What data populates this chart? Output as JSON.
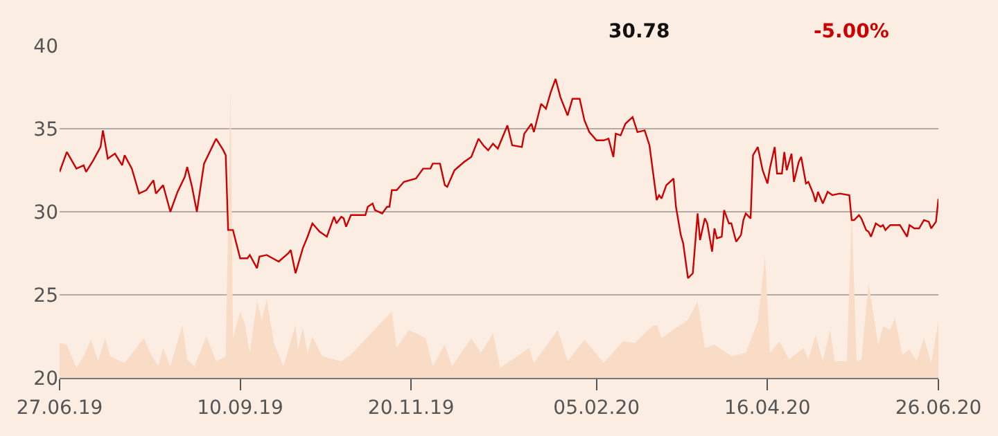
{
  "chart_data": {
    "type": "line",
    "annotations": [
      "30.78",
      "-5.00%"
    ],
    "xlim": [
      "2019-06-27",
      "2020-06-26"
    ],
    "xticks": [
      {
        "value": "2019-06-27",
        "label": "27.06.19"
      },
      {
        "value": "2019-09-10",
        "label": "10.09.19"
      },
      {
        "value": "2019-11-20",
        "label": "20.11.19"
      },
      {
        "value": "2020-02-05",
        "label": "05.02.20"
      },
      {
        "value": "2020-04-16",
        "label": "16.04.20"
      },
      {
        "value": "2020-06-26",
        "label": "26.06.20"
      }
    ],
    "ylim": [
      20,
      40
    ],
    "yticks": [
      20,
      25,
      30,
      35,
      40
    ],
    "grid": "y",
    "series": [
      {
        "type": "area",
        "color": "#f8dcc6",
        "x": [
          "2019-06-27",
          "2019-06-30",
          "2019-07-04",
          "2019-07-07",
          "2019-07-10",
          "2019-07-13",
          "2019-07-16",
          "2019-07-18",
          "2019-07-24",
          "2019-08-01",
          "2019-08-04",
          "2019-08-07",
          "2019-08-09",
          "2019-08-12",
          "2019-08-17",
          "2019-08-19",
          "2019-08-22",
          "2019-08-27",
          "2019-08-31",
          "2019-09-04",
          "2019-09-06",
          "2019-09-07",
          "2019-09-10",
          "2019-09-12",
          "2019-09-14",
          "2019-09-17",
          "2019-09-19",
          "2019-09-21",
          "2019-09-24",
          "2019-09-28",
          "2019-10-03",
          "2019-10-04",
          "2019-10-06",
          "2019-10-08",
          "2019-10-10",
          "2019-10-14",
          "2019-10-22",
          "2019-10-26",
          "2019-11-12",
          "2019-11-14",
          "2019-11-19",
          "2019-11-26",
          "2019-11-29",
          "2019-12-04",
          "2019-12-07",
          "2019-12-15",
          "2019-12-19",
          "2019-12-24",
          "2019-12-27",
          "2020-01-08",
          "2020-01-10",
          "2020-01-20",
          "2020-01-24",
          "2020-01-31",
          "2020-02-08",
          "2020-02-16",
          "2020-02-21",
          "2020-02-28",
          "2020-03-01",
          "2020-03-03",
          "2020-03-14",
          "2020-03-18",
          "2020-03-21",
          "2020-03-25",
          "2020-04-01",
          "2020-04-07",
          "2020-04-12",
          "2020-04-15",
          "2020-04-17",
          "2020-04-21",
          "2020-04-25",
          "2020-05-01",
          "2020-05-03",
          "2020-05-06",
          "2020-05-09",
          "2020-05-12",
          "2020-05-14",
          "2020-05-19",
          "2020-05-21",
          "2020-05-23",
          "2020-05-25",
          "2020-05-28",
          "2020-06-01",
          "2020-06-03",
          "2020-06-06",
          "2020-06-08",
          "2020-06-11",
          "2020-06-14",
          "2020-06-17",
          "2020-06-20",
          "2020-06-23",
          "2020-06-26"
        ],
        "values": [
          22.1,
          22.0,
          20.6,
          21.3,
          22.3,
          21.0,
          22.4,
          21.3,
          20.9,
          22.4,
          21.4,
          20.7,
          21.8,
          20.7,
          23.2,
          21.1,
          20.7,
          22.5,
          21.0,
          21.3,
          37.3,
          22.4,
          24.0,
          23.2,
          21.5,
          24.6,
          23.5,
          24.7,
          22.1,
          20.7,
          23.2,
          21.7,
          23.0,
          21.5,
          22.5,
          21.3,
          21.0,
          21.4,
          24.0,
          21.8,
          22.9,
          22.4,
          20.7,
          22.0,
          20.7,
          22.4,
          21.5,
          22.7,
          20.6,
          21.8,
          20.9,
          22.9,
          21.0,
          22.3,
          20.9,
          22.2,
          22.1,
          23.1,
          23.2,
          22.4,
          23.5,
          24.6,
          21.8,
          22.0,
          21.3,
          21.5,
          23.4,
          27.3,
          21.5,
          22.2,
          21.1,
          21.8,
          21.1,
          22.6,
          21.0,
          22.9,
          21.0,
          21.0,
          29.9,
          21.0,
          21.1,
          25.7,
          22.0,
          23.1,
          22.9,
          23.6,
          21.4,
          21.7,
          21.0,
          22.4,
          20.9,
          23.4
        ]
      },
      {
        "color": "#cc0000",
        "x": [
          "2019-06-27",
          "2019-06-30",
          "2019-07-04",
          "2019-07-07",
          "2019-07-08",
          "2019-07-11",
          "2019-07-14",
          "2019-07-15",
          "2019-07-17",
          "2019-07-20",
          "2019-07-23",
          "2019-07-24",
          "2019-07-27",
          "2019-07-30",
          "2019-08-02",
          "2019-08-05",
          "2019-08-06",
          "2019-08-09",
          "2019-08-12",
          "2019-08-15",
          "2019-08-18",
          "2019-08-19",
          "2019-08-21",
          "2019-08-23",
          "2019-08-26",
          "2019-08-31",
          "2019-09-03",
          "2019-09-04",
          "2019-09-05",
          "2019-09-07",
          "2019-09-10",
          "2019-09-13",
          "2019-09-14",
          "2019-09-17",
          "2019-09-18",
          "2019-09-21",
          "2019-09-26",
          "2019-09-30",
          "2019-10-01",
          "2019-10-03",
          "2019-10-06",
          "2019-10-08",
          "2019-10-10",
          "2019-10-13",
          "2019-10-16",
          "2019-10-19",
          "2019-10-20",
          "2019-10-22",
          "2019-10-23",
          "2019-10-24",
          "2019-10-26",
          "2019-10-29",
          "2019-11-01",
          "2019-11-02",
          "2019-11-04",
          "2019-11-05",
          "2019-11-08",
          "2019-11-10",
          "2019-11-11",
          "2019-11-12",
          "2019-11-14",
          "2019-11-17",
          "2019-11-22",
          "2019-11-25",
          "2019-11-28",
          "2019-11-29",
          "2019-12-02",
          "2019-12-04",
          "2019-12-05",
          "2019-12-08",
          "2019-12-12",
          "2019-12-15",
          "2019-12-18",
          "2019-12-20",
          "2019-12-22",
          "2019-12-24",
          "2019-12-26",
          "2019-12-30",
          "2020-01-01",
          "2020-01-05",
          "2020-01-06",
          "2020-01-09",
          "2020-01-10",
          "2020-01-13",
          "2020-01-15",
          "2020-01-17",
          "2020-01-19",
          "2020-01-21",
          "2020-01-24",
          "2020-01-26",
          "2020-01-29",
          "2020-01-31",
          "2020-02-02",
          "2020-02-05",
          "2020-02-08",
          "2020-02-10",
          "2020-02-12",
          "2020-02-13",
          "2020-02-15",
          "2020-02-17",
          "2020-02-20",
          "2020-02-22",
          "2020-02-25",
          "2020-02-27",
          "2020-03-01",
          "2020-03-02",
          "2020-03-03",
          "2020-03-05",
          "2020-03-08",
          "2020-03-09",
          "2020-03-11",
          "2020-03-12",
          "2020-03-14",
          "2020-03-16",
          "2020-03-18",
          "2020-03-19",
          "2020-03-21",
          "2020-03-22",
          "2020-03-24",
          "2020-03-25",
          "2020-03-26",
          "2020-03-28",
          "2020-03-29",
          "2020-03-31",
          "2020-04-01",
          "2020-04-03",
          "2020-04-05",
          "2020-04-06",
          "2020-04-07",
          "2020-04-09",
          "2020-04-10",
          "2020-04-12",
          "2020-04-14",
          "2020-04-16",
          "2020-04-17",
          "2020-04-19",
          "2020-04-20",
          "2020-04-22",
          "2020-04-23",
          "2020-04-24",
          "2020-04-26",
          "2020-04-27",
          "2020-04-29",
          "2020-04-30",
          "2020-05-02",
          "2020-05-03",
          "2020-05-05",
          "2020-05-06",
          "2020-05-07",
          "2020-05-09",
          "2020-05-11",
          "2020-05-13",
          "2020-05-16",
          "2020-05-20",
          "2020-05-21",
          "2020-05-22",
          "2020-05-24",
          "2020-05-25",
          "2020-05-27",
          "2020-05-28",
          "2020-05-29",
          "2020-05-31",
          "2020-06-02",
          "2020-06-03",
          "2020-06-04",
          "2020-06-06",
          "2020-06-10",
          "2020-06-13",
          "2020-06-14",
          "2020-06-16",
          "2020-06-18",
          "2020-06-20",
          "2020-06-22",
          "2020-06-23",
          "2020-06-25",
          "2020-06-26"
        ],
        "values": [
          32.4,
          33.6,
          32.6,
          32.8,
          32.4,
          33.1,
          33.9,
          34.9,
          33.2,
          33.5,
          32.8,
          33.4,
          32.6,
          31.1,
          31.3,
          31.9,
          31.1,
          31.6,
          30.0,
          31.2,
          32.1,
          32.7,
          31.5,
          30.0,
          32.9,
          34.4,
          33.7,
          33.4,
          28.9,
          28.9,
          27.2,
          27.2,
          27.4,
          26.6,
          27.3,
          27.4,
          27.0,
          27.5,
          27.7,
          26.3,
          27.8,
          28.5,
          29.3,
          28.8,
          28.5,
          29.7,
          29.3,
          29.7,
          29.6,
          29.1,
          29.8,
          29.8,
          29.8,
          30.3,
          30.5,
          30.1,
          29.9,
          30.3,
          30.3,
          31.3,
          31.3,
          31.8,
          32.0,
          32.6,
          32.6,
          32.9,
          32.9,
          31.6,
          31.5,
          32.5,
          33.0,
          33.3,
          34.4,
          34.0,
          33.7,
          34.1,
          33.8,
          35.2,
          34.0,
          33.9,
          34.7,
          35.3,
          34.8,
          36.5,
          36.2,
          37.2,
          38.0,
          36.9,
          35.8,
          36.8,
          36.8,
          35.5,
          34.8,
          34.3,
          34.3,
          34.4,
          33.3,
          34.7,
          34.6,
          35.3,
          35.7,
          34.8,
          34.9,
          34.0,
          30.7,
          31.0,
          30.8,
          31.6,
          32.0,
          30.3,
          28.6,
          28.1,
          26.0,
          26.3,
          29.9,
          28.3,
          29.6,
          29.3,
          27.6,
          29.0,
          28.4,
          28.5,
          30.1,
          29.3,
          29.3,
          28.2,
          28.6,
          29.5,
          29.9,
          29.6,
          33.4,
          33.9,
          32.5,
          31.7,
          32.6,
          33.9,
          32.3,
          32.3,
          33.6,
          32.5,
          33.5,
          31.8,
          33.0,
          33.3,
          31.7,
          31.8,
          31.1,
          30.6,
          31.2,
          30.5,
          31.2,
          31.0,
          31.1,
          31.0,
          29.5,
          29.5,
          29.8,
          29.6,
          28.9,
          28.8,
          28.5,
          29.3,
          29.1,
          29.2,
          28.9,
          29.2,
          29.2,
          28.5,
          29.2,
          29.0,
          29.0,
          29.5,
          29.4,
          29.0,
          29.4,
          30.78
        ]
      }
    ]
  }
}
